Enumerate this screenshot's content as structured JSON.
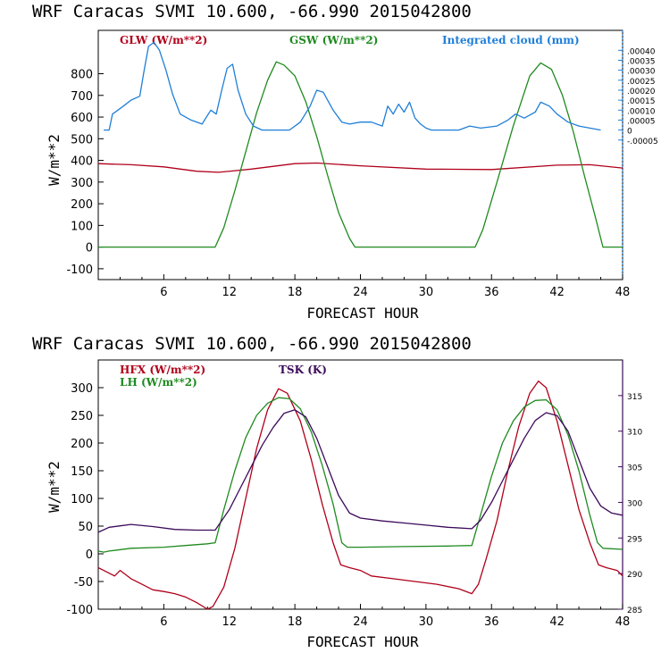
{
  "colors": {
    "red": "#b0001a",
    "green": "#1f8a1f",
    "blue": "#1f7fd8",
    "purple": "#3c0a5a"
  },
  "chart_data": [
    {
      "type": "line",
      "title": "WRF  Caracas SVMI  10.600, -66.990  2015042800",
      "xlabel": "FORECAST HOUR",
      "ylabel": "W/m**2",
      "xlim": [
        0,
        48
      ],
      "ylim": [
        -150,
        1000
      ],
      "xticks": [
        "6",
        "12",
        "18",
        "24",
        "30",
        "36",
        "42",
        "48"
      ],
      "yticks": [
        "-100",
        "0",
        "100",
        "200",
        "300",
        "400",
        "500",
        "600",
        "700",
        "800"
      ],
      "right_axis": {
        "ylim": [
          -0.00075,
          0.0005
        ],
        "ticks": [
          ".00040",
          ".00035",
          ".00030",
          ".00025",
          ".00020",
          ".00015",
          ".00010",
          ".00005",
          "0",
          "-.00005"
        ],
        "style": "dotted",
        "color": "#1f7fd8"
      },
      "series": [
        {
          "name": "GLW (W/m**2)",
          "color": "#b0001a",
          "axis": "left",
          "points": [
            [
              0,
              385
            ],
            [
              3,
              380
            ],
            [
              6,
              370
            ],
            [
              9,
              350
            ],
            [
              11,
              345
            ],
            [
              14,
              360
            ],
            [
              18,
              385
            ],
            [
              20,
              388
            ],
            [
              24,
              375
            ],
            [
              30,
              360
            ],
            [
              36,
              358
            ],
            [
              42,
              378
            ],
            [
              45,
              380
            ],
            [
              48,
              365
            ]
          ]
        },
        {
          "name": "GSW (W/m**2)",
          "color": "#1f8a1f",
          "axis": "left",
          "points": [
            [
              0,
              0
            ],
            [
              10.7,
              0
            ],
            [
              11.5,
              90
            ],
            [
              12.5,
              260
            ],
            [
              13.5,
              440
            ],
            [
              14.5,
              620
            ],
            [
              15.5,
              770
            ],
            [
              16.3,
              855
            ],
            [
              17,
              840
            ],
            [
              18,
              790
            ],
            [
              19,
              670
            ],
            [
              20,
              510
            ],
            [
              21,
              330
            ],
            [
              22,
              160
            ],
            [
              23,
              40
            ],
            [
              23.5,
              0
            ],
            [
              34.5,
              0
            ],
            [
              35.2,
              80
            ],
            [
              36.5,
              300
            ],
            [
              38,
              560
            ],
            [
              39.5,
              790
            ],
            [
              40.5,
              850
            ],
            [
              41.5,
              820
            ],
            [
              42.5,
              700
            ],
            [
              43.5,
              530
            ],
            [
              44.5,
              330
            ],
            [
              45.5,
              140
            ],
            [
              46.2,
              0
            ],
            [
              48,
              0
            ]
          ]
        },
        {
          "name": "Integrated cloud (mm)",
          "color": "#1f7fd8",
          "axis": "right",
          "points": [
            [
              0.5,
              0
            ],
            [
              1,
              0
            ],
            [
              1.3,
              8e-05
            ],
            [
              1.8,
              0.0001
            ],
            [
              2.3,
              0.00012
            ],
            [
              3,
              0.00015
            ],
            [
              3.8,
              0.00017
            ],
            [
              4.2,
              0.0003
            ],
            [
              4.6,
              0.00042
            ],
            [
              5.1,
              0.00044
            ],
            [
              5.6,
              0.0004
            ],
            [
              6.2,
              0.0003
            ],
            [
              6.8,
              0.00018
            ],
            [
              7.5,
              8e-05
            ],
            [
              8.5,
              5e-05
            ],
            [
              9.5,
              3e-05
            ],
            [
              10.3,
              0.0001
            ],
            [
              10.8,
              8e-05
            ],
            [
              11.3,
              0.0002
            ],
            [
              11.8,
              0.00031
            ],
            [
              12.3,
              0.00033
            ],
            [
              12.8,
              0.0002
            ],
            [
              13.5,
              8e-05
            ],
            [
              14.2,
              2e-05
            ],
            [
              15,
              0
            ],
            [
              17.5,
              0
            ],
            [
              18.5,
              4e-05
            ],
            [
              19.4,
              0.00012
            ],
            [
              20,
              0.0002
            ],
            [
              20.6,
              0.00019
            ],
            [
              21.5,
              0.0001
            ],
            [
              22.3,
              4e-05
            ],
            [
              23,
              3e-05
            ],
            [
              24,
              4e-05
            ],
            [
              25,
              4e-05
            ],
            [
              26,
              2e-05
            ],
            [
              26.5,
              0.00012
            ],
            [
              27,
              8e-05
            ],
            [
              27.5,
              0.00013
            ],
            [
              28,
              9e-05
            ],
            [
              28.5,
              0.00014
            ],
            [
              29,
              6e-05
            ],
            [
              29.5,
              3e-05
            ],
            [
              30,
              1e-05
            ],
            [
              30.5,
              0
            ],
            [
              33,
              0
            ],
            [
              34,
              2e-05
            ],
            [
              35,
              1e-05
            ],
            [
              36.5,
              2e-05
            ],
            [
              37.5,
              5e-05
            ],
            [
              38.2,
              8e-05
            ],
            [
              39,
              6e-05
            ],
            [
              40,
              9e-05
            ],
            [
              40.5,
              0.00014
            ],
            [
              41.3,
              0.00012
            ],
            [
              42,
              8e-05
            ],
            [
              43,
              4e-05
            ],
            [
              44,
              2e-05
            ],
            [
              45,
              1e-05
            ],
            [
              46,
              0
            ]
          ]
        }
      ]
    },
    {
      "type": "line",
      "title": "WRF  Caracas SVMI  10.600, -66.990  2015042800",
      "xlabel": "FORECAST HOUR",
      "ylabel": "W/m**2",
      "xlim": [
        0,
        48
      ],
      "ylim": [
        -100,
        350
      ],
      "xticks": [
        "6",
        "12",
        "18",
        "24",
        "30",
        "36",
        "42",
        "48"
      ],
      "yticks": [
        "-100",
        "-50",
        "0",
        "50",
        "100",
        "150",
        "200",
        "250",
        "300"
      ],
      "right_axis": {
        "ylim": [
          285,
          320
        ],
        "ticks": [
          "285",
          "290",
          "295",
          "300",
          "305",
          "310",
          "315"
        ],
        "style": "solid",
        "color": "#3c0a5a"
      },
      "series": [
        {
          "name": "HFX (W/m**2)",
          "color": "#b0001a",
          "axis": "left",
          "points": [
            [
              0,
              -25
            ],
            [
              0.5,
              -30
            ],
            [
              1,
              -35
            ],
            [
              1.5,
              -40
            ],
            [
              2,
              -30
            ],
            [
              3,
              -45
            ],
            [
              4,
              -55
            ],
            [
              5,
              -65
            ],
            [
              6,
              -68
            ],
            [
              7,
              -72
            ],
            [
              8,
              -78
            ],
            [
              9,
              -88
            ],
            [
              10,
              -100
            ],
            [
              10.5,
              -95
            ],
            [
              11.5,
              -60
            ],
            [
              12.5,
              10
            ],
            [
              13.5,
              100
            ],
            [
              14.5,
              190
            ],
            [
              15.5,
              260
            ],
            [
              16.5,
              298
            ],
            [
              17.3,
              290
            ],
            [
              18.5,
              240
            ],
            [
              19.5,
              170
            ],
            [
              20.5,
              90
            ],
            [
              21.5,
              20
            ],
            [
              22.2,
              -20
            ],
            [
              23,
              -25
            ],
            [
              24,
              -30
            ],
            [
              25,
              -40
            ],
            [
              27,
              -45
            ],
            [
              29,
              -50
            ],
            [
              31,
              -55
            ],
            [
              33,
              -63
            ],
            [
              34.2,
              -72
            ],
            [
              34.8,
              -55
            ],
            [
              35.5,
              -10
            ],
            [
              36.5,
              60
            ],
            [
              37.5,
              150
            ],
            [
              38.5,
              230
            ],
            [
              39.5,
              290
            ],
            [
              40.3,
              312
            ],
            [
              41,
              300
            ],
            [
              42,
              240
            ],
            [
              43,
              160
            ],
            [
              44,
              80
            ],
            [
              45,
              20
            ],
            [
              45.8,
              -20
            ],
            [
              46.5,
              -25
            ],
            [
              47.5,
              -30
            ],
            [
              48,
              -40
            ]
          ]
        },
        {
          "name": "LH (W/m**2)",
          "color": "#1f8a1f",
          "axis": "left",
          "points": [
            [
              0,
              5
            ],
            [
              0.5,
              3
            ],
            [
              1,
              5
            ],
            [
              3,
              10
            ],
            [
              6,
              12
            ],
            [
              8,
              15
            ],
            [
              10,
              18
            ],
            [
              10.7,
              20
            ],
            [
              11.5,
              80
            ],
            [
              12.5,
              150
            ],
            [
              13.5,
              210
            ],
            [
              14.5,
              250
            ],
            [
              15.5,
              272
            ],
            [
              16.5,
              282
            ],
            [
              17.5,
              280
            ],
            [
              18.5,
              262
            ],
            [
              19.5,
              220
            ],
            [
              20.5,
              160
            ],
            [
              21.5,
              90
            ],
            [
              22.3,
              20
            ],
            [
              22.8,
              12
            ],
            [
              24,
              12
            ],
            [
              28,
              13
            ],
            [
              32,
              14
            ],
            [
              34.2,
              15
            ],
            [
              35,
              70
            ],
            [
              36,
              140
            ],
            [
              37,
              200
            ],
            [
              38,
              240
            ],
            [
              39,
              265
            ],
            [
              40,
              277
            ],
            [
              41,
              278
            ],
            [
              42,
              260
            ],
            [
              43,
              215
            ],
            [
              44,
              150
            ],
            [
              45,
              70
            ],
            [
              45.7,
              20
            ],
            [
              46.2,
              10
            ],
            [
              48,
              8
            ]
          ]
        },
        {
          "name": "TSK (K)",
          "color": "#3c0a5a",
          "axis": "right",
          "points": [
            [
              0,
              295.8
            ],
            [
              1,
              296.5
            ],
            [
              2,
              296.7
            ],
            [
              3,
              296.9
            ],
            [
              5,
              296.6
            ],
            [
              7,
              296.2
            ],
            [
              9,
              296.1
            ],
            [
              10.7,
              296.1
            ],
            [
              12,
              299
            ],
            [
              13,
              302
            ],
            [
              14,
              305
            ],
            [
              15,
              308
            ],
            [
              16,
              310.5
            ],
            [
              17,
              312.5
            ],
            [
              18,
              313
            ],
            [
              19,
              312
            ],
            [
              20,
              309
            ],
            [
              21,
              305
            ],
            [
              22,
              301
            ],
            [
              23,
              298.5
            ],
            [
              24,
              297.8
            ],
            [
              26,
              297.4
            ],
            [
              28,
              297.1
            ],
            [
              30,
              296.8
            ],
            [
              32,
              296.5
            ],
            [
              34.2,
              296.3
            ],
            [
              35,
              297.5
            ],
            [
              36,
              300
            ],
            [
              37,
              303
            ],
            [
              38,
              306
            ],
            [
              39,
              309
            ],
            [
              40,
              311.5
            ],
            [
              41,
              312.6
            ],
            [
              42,
              312.2
            ],
            [
              43,
              310
            ],
            [
              44,
              306
            ],
            [
              45,
              302
            ],
            [
              46,
              299.5
            ],
            [
              47,
              298.5
            ],
            [
              48,
              298.2
            ]
          ]
        }
      ]
    }
  ],
  "legend": {
    "top": {
      "glw": "GLW (W/m**2)",
      "gsw": "GSW (W/m**2)",
      "cloud": "Integrated cloud (mm)"
    },
    "bottom": {
      "hfx": "HFX (W/m**2)",
      "lh": "LH  (W/m**2)",
      "tsk": "TSK (K)"
    }
  }
}
